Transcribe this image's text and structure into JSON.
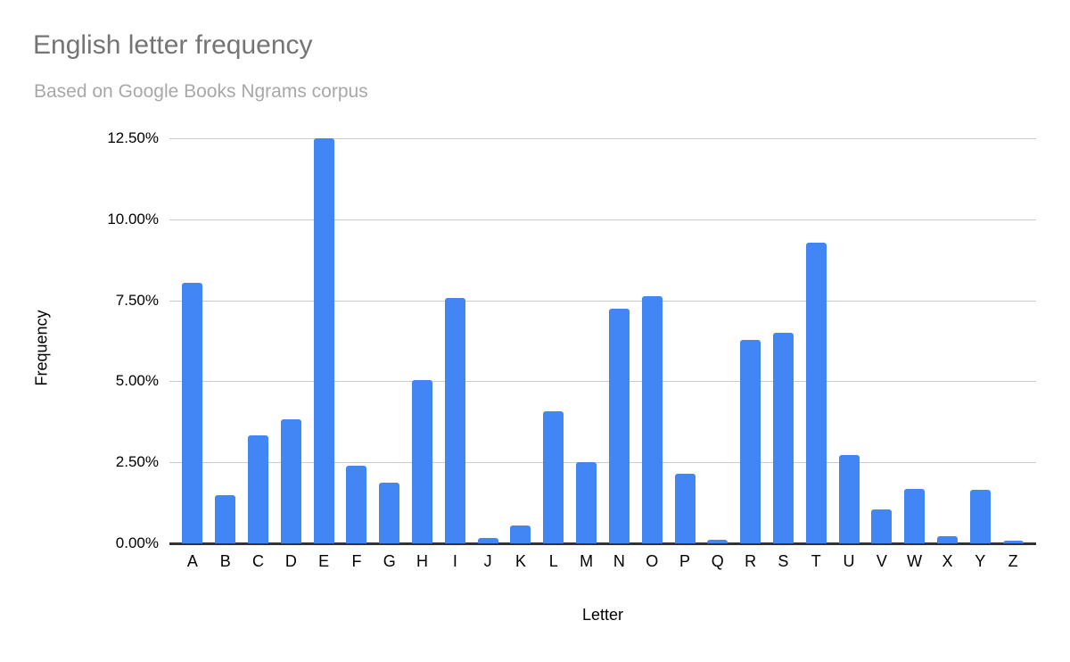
{
  "chart_data": {
    "type": "bar",
    "title": "English letter frequency",
    "subtitle": "Based on Google Books Ngrams corpus",
    "xlabel": "Letter",
    "ylabel": "Frequency",
    "categories": [
      "A",
      "B",
      "C",
      "D",
      "E",
      "F",
      "G",
      "H",
      "I",
      "J",
      "K",
      "L",
      "M",
      "N",
      "O",
      "P",
      "Q",
      "R",
      "S",
      "T",
      "U",
      "V",
      "W",
      "X",
      "Y",
      "Z"
    ],
    "values": [
      8.04,
      1.48,
      3.34,
      3.82,
      12.49,
      2.4,
      1.87,
      5.05,
      7.57,
      0.16,
      0.54,
      4.07,
      2.51,
      7.23,
      7.64,
      2.14,
      0.12,
      6.28,
      6.51,
      9.28,
      2.73,
      1.05,
      1.68,
      0.23,
      1.66,
      0.09
    ],
    "value_unit": "percent",
    "ylim": [
      0,
      12.5
    ],
    "yticks": [
      0,
      2.5,
      5,
      7.5,
      10,
      12.5
    ],
    "ytick_labels": [
      "0.00%",
      "2.50%",
      "5.00%",
      "7.50%",
      "10.00%",
      "12.50%"
    ],
    "grid": true,
    "legend": "none"
  },
  "colors": {
    "bar": "#4285f4",
    "title_text": "#757575",
    "subtitle_text": "#a8a8a8",
    "gridline": "#cccccc",
    "axis_line": "#333333",
    "tick_text": "#000000",
    "background": "#ffffff"
  }
}
